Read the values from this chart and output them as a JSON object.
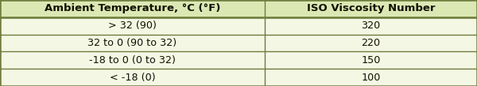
{
  "header": [
    "Ambient Temperature, °C (°F)",
    "ISO Viscosity Number"
  ],
  "rows": [
    [
      "> 32 (90)",
      "320"
    ],
    [
      "32 to 0 (90 to 32)",
      "220"
    ],
    [
      "-18 to 0 (0 to 32)",
      "150"
    ],
    [
      "< -18 (0)",
      "100"
    ]
  ],
  "header_bg": "#dce8b4",
  "row_bg": "#f4f7e4",
  "border_color": "#6e7c3c",
  "text_color": "#111100",
  "col_splits": [
    0.555
  ],
  "figsize": [
    6.0,
    1.09
  ],
  "dpi": 100,
  "header_fontsize": 9.5,
  "row_fontsize": 9.2,
  "outer_border_lw": 1.8,
  "inner_border_lw": 1.0
}
